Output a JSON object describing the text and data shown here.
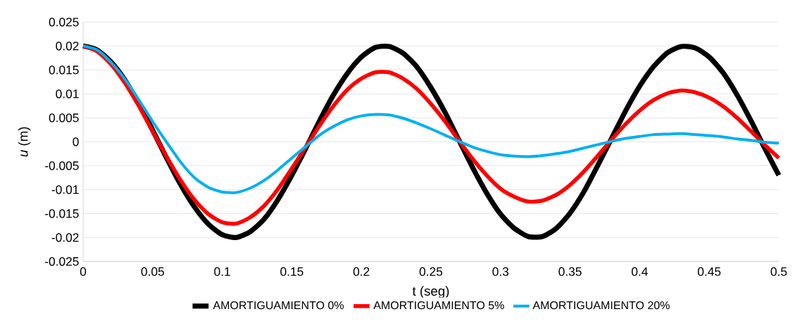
{
  "chart_data": {
    "type": "line",
    "xlabel": "t (seg)",
    "ylabel": "*u* (m)",
    "x": [
      0,
      0.01,
      0.02,
      0.03,
      0.04,
      0.05,
      0.06,
      0.07,
      0.08,
      0.09,
      0.1,
      0.11,
      0.12,
      0.13,
      0.14,
      0.15,
      0.16,
      0.17,
      0.18,
      0.19,
      0.2,
      0.21,
      0.22,
      0.23,
      0.24,
      0.25,
      0.26,
      0.27,
      0.28,
      0.29,
      0.3,
      0.31,
      0.32,
      0.33,
      0.34,
      0.35,
      0.36,
      0.37,
      0.38,
      0.39,
      0.4,
      0.41,
      0.42,
      0.43,
      0.44,
      0.45,
      0.46,
      0.47,
      0.48,
      0.49,
      0.5
    ],
    "series": [
      {
        "name": "AMORTIGUAMIENTO 0%",
        "color": "#000000",
        "values": [
          0.02,
          0.0192,
          0.0167,
          0.0129,
          0.0079,
          0.0024,
          -0.0034,
          -0.0089,
          -0.0136,
          -0.0172,
          -0.0194,
          -0.02,
          -0.0188,
          -0.0162,
          -0.0121,
          -0.007,
          -0.0014,
          0.0044,
          0.0098,
          0.0143,
          0.0177,
          0.0197,
          0.0199,
          0.0185,
          0.0156,
          0.0113,
          0.0062,
          0.0004,
          -0.0054,
          -0.0107,
          -0.0151,
          -0.0181,
          -0.0198,
          -0.0198,
          -0.0181,
          -0.0149,
          -0.0104,
          -0.0049,
          0.0008,
          0.0065,
          0.0116,
          0.0157,
          0.0186,
          0.0199,
          0.0196,
          0.0177,
          0.0144,
          0.0098,
          0.0044,
          -0.0014,
          -0.007
        ]
      },
      {
        "name": "AMORTIGUAMIENTO 5%",
        "color": "#ff0000",
        "values": [
          0.02,
          0.0189,
          0.0162,
          0.0123,
          0.0075,
          0.0022,
          -0.0031,
          -0.008,
          -0.0121,
          -0.0151,
          -0.0168,
          -0.0171,
          -0.0158,
          -0.0134,
          -0.0099,
          -0.0056,
          -0.0011,
          0.0034,
          0.0075,
          0.0109,
          0.0132,
          0.0145,
          0.0145,
          0.0132,
          0.011,
          0.0079,
          0.0043,
          0.0003,
          -0.0036,
          -0.007,
          -0.0098,
          -0.0115,
          -0.0125,
          -0.0123,
          -0.0111,
          -0.009,
          -0.0062,
          -0.0029,
          0.0005,
          0.0037,
          0.0065,
          0.0087,
          0.0101,
          0.0107,
          0.0103,
          0.0092,
          0.0074,
          0.005,
          0.0022,
          -0.0007,
          -0.0034
        ]
      },
      {
        "name": "AMORTIGUAMIENTO 20%",
        "color": "#00b0f0",
        "values": [
          0.02,
          0.0192,
          0.0166,
          0.0131,
          0.0088,
          0.0042,
          -0.0001,
          -0.0042,
          -0.0075,
          -0.0095,
          -0.0105,
          -0.0106,
          -0.0097,
          -0.0081,
          -0.0059,
          -0.0034,
          -0.001,
          0.0014,
          0.0032,
          0.0046,
          0.0054,
          0.0057,
          0.0056,
          0.0049,
          0.0039,
          0.0027,
          0.0014,
          0.0001,
          -0.0011,
          -0.002,
          -0.0027,
          -0.003,
          -0.0031,
          -0.0029,
          -0.0025,
          -0.002,
          -0.0013,
          -0.0006,
          0.0001,
          0.0007,
          0.0011,
          0.0015,
          0.0016,
          0.0017,
          0.0015,
          0.0013,
          0.001,
          0.0006,
          0.0003,
          -0.0001,
          -0.0003
        ]
      }
    ],
    "xlim": [
      0,
      0.5
    ],
    "ylim": [
      -0.025,
      0.025
    ],
    "xticks": [
      0,
      0.05,
      0.1,
      0.15,
      0.2,
      0.25,
      0.3,
      0.35,
      0.4,
      0.45,
      0.5
    ],
    "yticks": [
      -0.025,
      -0.02,
      -0.015,
      -0.01,
      -0.005,
      0,
      0.005,
      0.01,
      0.015,
      0.02,
      0.025
    ],
    "grid": "y",
    "legend": "bottom",
    "marker": "none",
    "line_style": "solid"
  }
}
